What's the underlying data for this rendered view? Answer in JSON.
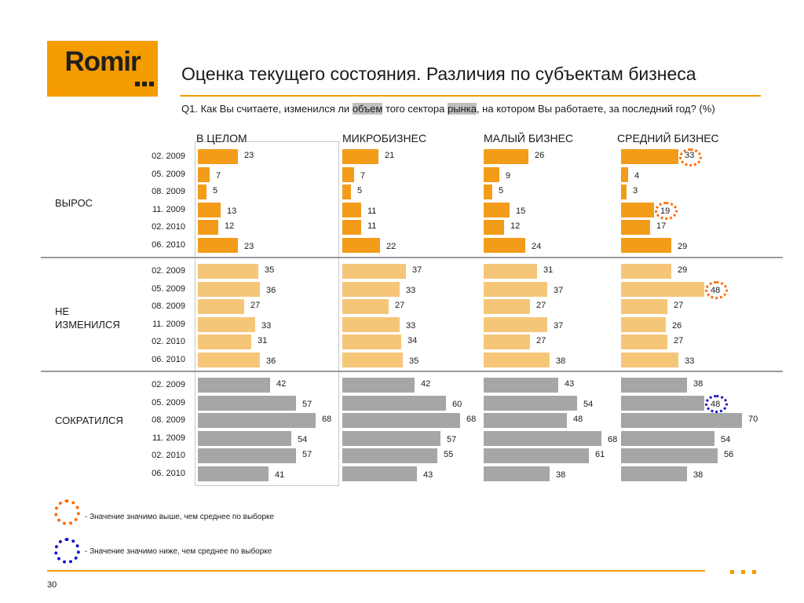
{
  "logo": {
    "text": "Romir"
  },
  "title": "Оценка текущего состояния. Различия по субъектам бизнеса",
  "question": {
    "before": "Q1. Как Вы считаете, изменился ли ",
    "hl1": "объем",
    "middle": " того сектора ",
    "hl2": "рынка",
    "after": ", на котором Вы работаете, за последний год? (%)"
  },
  "legend": {
    "high": "- Значение значимо выше, чем среднее по выборке",
    "low": "- Значение значимо ниже, чем среднее по выборке"
  },
  "page_number": "30",
  "colors": {
    "brand": "#f59c00",
    "grew": "#f29c1a",
    "same": "#f6c678",
    "fell": "#a6a6a6",
    "sig_high": "#ff6a00",
    "sig_low": "#1414c8"
  },
  "chart_data": {
    "type": "bar",
    "orientation": "horizontal",
    "periods": [
      "02. 2009",
      "05. 2009",
      "08. 2009",
      "11. 2009",
      "02. 2010",
      "06. 2010"
    ],
    "panels": [
      "В ЦЕЛОМ",
      "МИКРОБИЗНЕС",
      "МАЛЫЙ БИЗНЕС",
      "СРЕДНИЙ БИЗНЕС"
    ],
    "groups": [
      {
        "label": "ВЫРОС",
        "values": [
          [
            23,
            7,
            5,
            13,
            12,
            23
          ],
          [
            21,
            7,
            5,
            11,
            11,
            22
          ],
          [
            26,
            9,
            5,
            15,
            12,
            24
          ],
          [
            33,
            4,
            3,
            19,
            17,
            29
          ]
        ]
      },
      {
        "label": "НЕ ИЗМЕНИЛСЯ",
        "values": [
          [
            35,
            36,
            27,
            33,
            31,
            36
          ],
          [
            37,
            33,
            27,
            33,
            34,
            35
          ],
          [
            31,
            37,
            27,
            37,
            27,
            38
          ],
          [
            29,
            48,
            27,
            26,
            27,
            33
          ]
        ]
      },
      {
        "label": "СОКРАТИЛСЯ",
        "values": [
          [
            42,
            57,
            68,
            54,
            57,
            41
          ],
          [
            42,
            60,
            68,
            57,
            55,
            43
          ],
          [
            43,
            54,
            48,
            68,
            61,
            38
          ],
          [
            38,
            48,
            70,
            54,
            56,
            38
          ]
        ]
      }
    ],
    "significant_high": [
      {
        "group": 0,
        "panel": 3,
        "period": 0
      },
      {
        "group": 0,
        "panel": 3,
        "period": 3
      },
      {
        "group": 1,
        "panel": 3,
        "period": 1
      }
    ],
    "significant_low": [
      {
        "group": 2,
        "panel": 3,
        "period": 1
      }
    ]
  }
}
